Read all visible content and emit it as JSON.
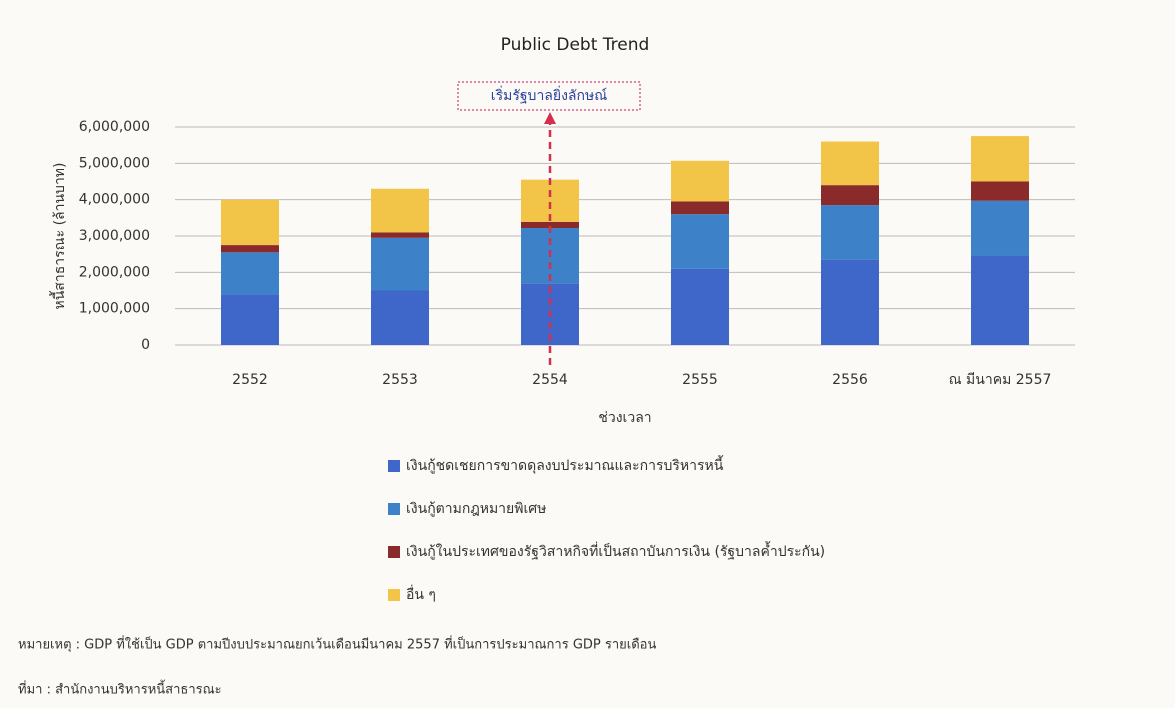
{
  "chart_data": {
    "type": "stacked_bar",
    "title": "Public Debt Trend",
    "annotation": "เริ่มรัฐบาลยิ่งลักษณ์",
    "y_label": "หนี้สาธารณะ (ล้านบาท)",
    "x_label": "ช่วงเวลา",
    "categories": [
      "2552",
      "2553",
      "2554",
      "2555",
      "2556",
      "ณ มีนาคม 2557"
    ],
    "series": [
      {
        "name": "เงินกู้ชดเชยการขาดดุลงบประมาณและการบริหารหนี้",
        "color": "#3f66c9",
        "values": [
          1400000,
          1500000,
          1700000,
          2100000,
          2350000,
          2450000
        ]
      },
      {
        "name": "เงินกู้ตามกฎหมายพิเศษ",
        "color": "#3d82c8",
        "values": [
          1150000,
          1450000,
          1520000,
          1500000,
          1500000,
          1520000
        ]
      },
      {
        "name": "เงินกู้ในประเทศของรัฐวิสาหกิจที่เป็นสถาบันการเงิน (รัฐบาลค้ำประกัน)",
        "color": "#8b2a2a",
        "values": [
          200000,
          150000,
          170000,
          350000,
          550000,
          530000
        ]
      },
      {
        "name": "อื่น ๆ",
        "color": "#f2c548",
        "values": [
          1250000,
          1200000,
          1160000,
          1120000,
          1200000,
          1250000
        ]
      }
    ],
    "ylim": [
      0,
      6000000
    ],
    "yticks": [
      0,
      {
        "value": 1000000,
        "label": "1,000,000"
      },
      {
        "value": 2000000,
        "label": "2,000,000"
      },
      {
        "value": 3000000,
        "label": "3,000,000"
      },
      {
        "value": 4000000,
        "label": "4,000,000"
      },
      {
        "value": 5000000,
        "label": "5,000,000"
      },
      {
        "value": 6000000,
        "label": "6,000,000"
      }
    ],
    "grid": true,
    "note": "หมายเหตุ : GDP ที่ใช้เป็น GDP ตามปีงบประมาณยกเว้นเดือนมีนาคม 2557 ที่เป็นการประมาณการ GDP รายเดือน",
    "source": "ที่มา : สำนักงานบริหารหนี้สาธารณะ"
  }
}
